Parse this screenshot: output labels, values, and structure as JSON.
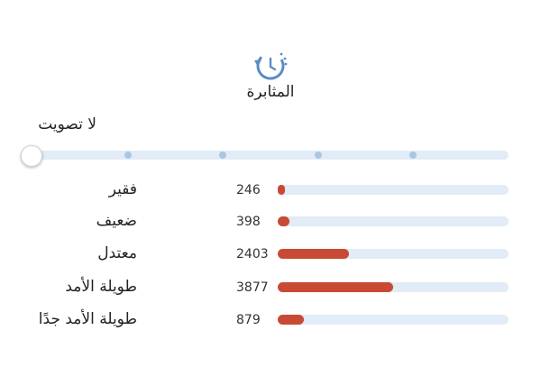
{
  "header": {
    "icon": "clock-history-icon",
    "title": "المثابرة"
  },
  "rating": {
    "current_label": "لا تصويت",
    "steps": 5,
    "selected_index": 0
  },
  "colors": {
    "accent": "#c94a34",
    "track": "#e1ecf7",
    "dot": "#a9c6e2",
    "icon": "#5b8cc6"
  },
  "distribution": [
    {
      "label": "فقير",
      "count": "246",
      "fraction": 0.032
    },
    {
      "label": "ضعيف",
      "count": "398",
      "fraction": 0.052
    },
    {
      "label": "معتدل",
      "count": "2403",
      "fraction": 0.31
    },
    {
      "label": "طويلة الأمد",
      "count": "3877",
      "fraction": 0.5
    },
    {
      "label": "طويلة الأمد جدًا",
      "count": "879",
      "fraction": 0.113
    }
  ]
}
